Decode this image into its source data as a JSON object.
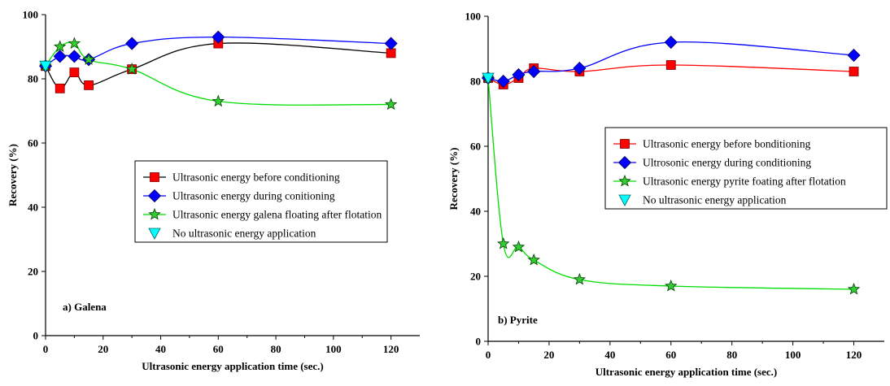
{
  "chart_data": [
    {
      "type": "line",
      "panel_label": "a) Galena",
      "xlabel": "Ultrasonic energy application time (sec.)",
      "ylabel": "Recovery (%)",
      "xlim": [
        0,
        130
      ],
      "ylim": [
        0,
        100
      ],
      "xticks": [
        0,
        20,
        40,
        60,
        80,
        100,
        120
      ],
      "yticks": [
        0,
        20,
        40,
        60,
        80,
        100
      ],
      "legend_position": "center-right",
      "series": [
        {
          "name": "Ultrasonic energy before conditioning",
          "marker": "square",
          "color": "#000000",
          "marker_color": "#ff0000",
          "x": [
            0,
            5,
            10,
            15,
            30,
            60,
            120
          ],
          "y": [
            84,
            77,
            82,
            78,
            83,
            91,
            88
          ]
        },
        {
          "name": "Ultrasonic energy during conitioning",
          "marker": "diamond",
          "color": "#0000ff",
          "marker_color": "#0000ff",
          "x": [
            0,
            5,
            10,
            15,
            30,
            60,
            120
          ],
          "y": [
            84,
            87,
            87,
            86,
            91,
            93,
            91
          ]
        },
        {
          "name": "Ultrasonic energy galena floating after flotation",
          "marker": "star",
          "color": "#00dd00",
          "marker_color": "#33cc33",
          "x": [
            0,
            5,
            10,
            15,
            30,
            60,
            120
          ],
          "y": [
            84,
            90,
            91,
            86,
            83,
            73,
            72
          ]
        },
        {
          "name": "No ultrasonic energy application",
          "marker": "triangle-down",
          "color": "#00cccc",
          "marker_color": "#00ffff",
          "x": [
            0
          ],
          "y": [
            84
          ]
        }
      ]
    },
    {
      "type": "line",
      "panel_label": "b) Pyrite",
      "xlabel": "Ultrasonic energy application time (sec.)",
      "ylabel": "Recovery (%)",
      "xlim": [
        0,
        130
      ],
      "ylim": [
        0,
        100
      ],
      "xticks": [
        0,
        20,
        40,
        60,
        80,
        100,
        120
      ],
      "yticks": [
        0,
        20,
        40,
        60,
        80,
        100
      ],
      "legend_position": "center-right",
      "series": [
        {
          "name": "Ultrasonic energy before bonditioning",
          "marker": "square",
          "color": "#ff0000",
          "marker_color": "#ff0000",
          "x": [
            0,
            5,
            10,
            15,
            30,
            60,
            120
          ],
          "y": [
            81,
            79,
            81,
            84,
            83,
            85,
            83
          ]
        },
        {
          "name": "Ultrosonic energy during conditioning",
          "marker": "diamond",
          "color": "#0000ff",
          "marker_color": "#0000ff",
          "x": [
            0,
            5,
            10,
            15,
            30,
            60,
            120
          ],
          "y": [
            81,
            80,
            82,
            83,
            84,
            92,
            88
          ]
        },
        {
          "name": "Ultrasonic energy pyrite foating after flotation",
          "marker": "star",
          "color": "#00dd00",
          "marker_color": "#33cc33",
          "x": [
            0,
            5,
            10,
            15,
            30,
            60,
            120
          ],
          "y": [
            81,
            30,
            29,
            25,
            19,
            17,
            16
          ]
        },
        {
          "name": "No ultrasonic energy application",
          "marker": "triangle-down",
          "color": "#00cccc",
          "marker_color": "#00ffff",
          "x": [
            0
          ],
          "y": [
            81
          ]
        }
      ]
    }
  ]
}
